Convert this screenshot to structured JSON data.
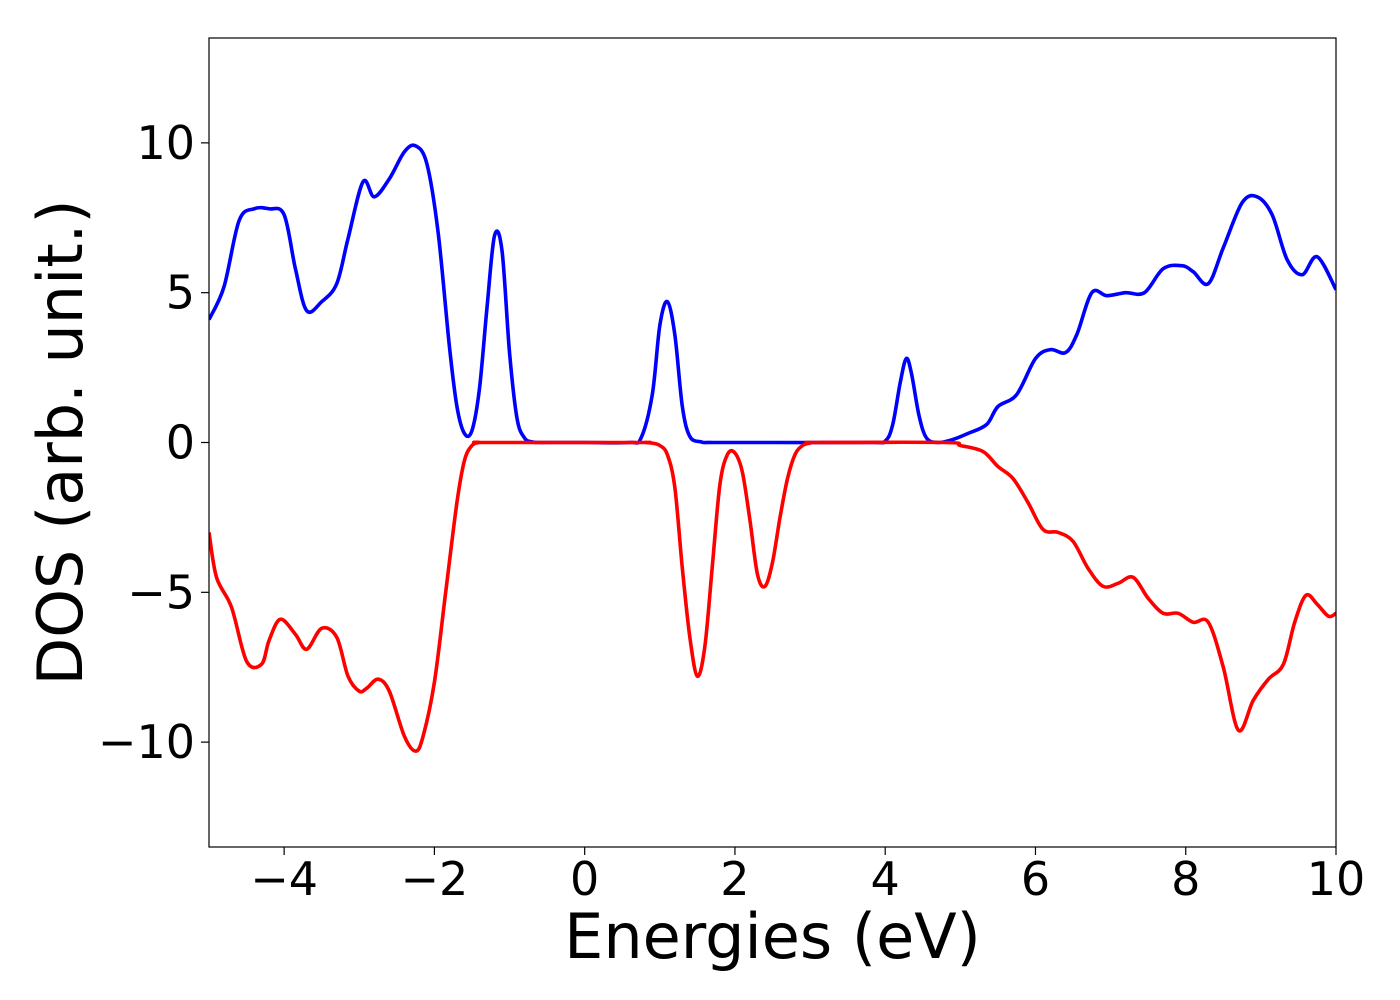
{
  "chart_data": {
    "type": "line",
    "title": "",
    "xlabel": "Energies (eV)",
    "ylabel": "DOS (arb. unit.)",
    "xlim": [
      -5,
      10
    ],
    "ylim": [
      -13.5,
      13.5
    ],
    "grid": false,
    "legend": "none",
    "x_ticks": [
      -4,
      -2,
      0,
      2,
      4,
      6,
      8,
      10
    ],
    "x_tick_labels": [
      "−4",
      "−2",
      "0",
      "2",
      "4",
      "6",
      "8",
      "10"
    ],
    "y_ticks": [
      -10,
      -5,
      0,
      5,
      10
    ],
    "y_tick_labels": [
      "−10",
      "−5",
      "0",
      "5",
      "10"
    ],
    "series": [
      {
        "color": "#0000ff",
        "x": [
          -5.0,
          -4.8,
          -4.6,
          -4.4,
          -4.2,
          -4.0,
          -3.85,
          -3.7,
          -3.5,
          -3.3,
          -3.15,
          -2.95,
          -2.8,
          -2.6,
          -2.4,
          -2.25,
          -2.1,
          -1.95,
          -1.8,
          -1.7,
          -1.6,
          -1.5,
          -1.4,
          -1.3,
          -1.2,
          -1.1,
          -1.0,
          -0.9,
          -0.8,
          -0.7,
          -0.6,
          -0.5,
          0.0,
          0.6,
          0.75,
          0.9,
          1.0,
          1.1,
          1.2,
          1.3,
          1.4,
          1.55,
          1.7,
          2.5,
          3.8,
          4.0,
          4.1,
          4.2,
          4.28,
          4.35,
          4.45,
          4.55,
          4.7,
          4.9,
          5.1,
          5.35,
          5.5,
          5.75,
          6.0,
          6.2,
          6.4,
          6.55,
          6.75,
          6.95,
          7.2,
          7.45,
          7.7,
          7.95,
          8.1,
          8.3,
          8.5,
          8.75,
          8.95,
          9.15,
          9.35,
          9.55,
          9.75,
          10.0
        ],
        "values": [
          4.1,
          5.2,
          7.4,
          7.8,
          7.8,
          7.6,
          5.8,
          4.4,
          4.7,
          5.3,
          6.8,
          8.7,
          8.2,
          8.8,
          9.7,
          9.9,
          9.3,
          7.0,
          3.2,
          1.2,
          0.3,
          0.4,
          1.8,
          4.5,
          6.9,
          6.4,
          3.0,
          0.8,
          0.15,
          0.02,
          0.0,
          0.0,
          0.0,
          0.0,
          0.15,
          1.6,
          3.9,
          4.7,
          3.6,
          1.2,
          0.2,
          0.02,
          0.0,
          0.0,
          0.0,
          0.05,
          0.6,
          2.0,
          2.8,
          2.3,
          0.9,
          0.15,
          0.0,
          0.1,
          0.3,
          0.6,
          1.2,
          1.6,
          2.8,
          3.1,
          3.0,
          3.6,
          5.0,
          4.9,
          5.0,
          5.0,
          5.8,
          5.9,
          5.7,
          5.3,
          6.5,
          8.0,
          8.2,
          7.6,
          6.1,
          5.6,
          6.2,
          5.1
        ]
      },
      {
        "color": "#ff0000",
        "x": [
          -5.0,
          -4.9,
          -4.7,
          -4.5,
          -4.3,
          -4.2,
          -4.05,
          -3.85,
          -3.7,
          -3.5,
          -3.3,
          -3.15,
          -3.0,
          -2.9,
          -2.75,
          -2.6,
          -2.4,
          -2.25,
          -2.15,
          -2.0,
          -1.85,
          -1.7,
          -1.6,
          -1.5,
          -1.4,
          -1.3,
          0.7,
          0.8,
          0.9,
          1.0,
          1.1,
          1.2,
          1.3,
          1.4,
          1.5,
          1.6,
          1.7,
          1.8,
          1.9,
          2.0,
          2.1,
          2.2,
          2.3,
          2.4,
          2.5,
          2.6,
          2.7,
          2.8,
          2.9,
          3.0,
          3.1,
          4.8,
          5.0,
          5.3,
          5.5,
          5.7,
          5.9,
          6.1,
          6.3,
          6.5,
          6.7,
          6.9,
          7.1,
          7.3,
          7.5,
          7.7,
          7.9,
          8.1,
          8.3,
          8.5,
          8.7,
          8.9,
          9.1,
          9.3,
          9.45,
          9.6,
          9.75,
          9.9,
          10.0
        ],
        "values": [
          -3.0,
          -4.5,
          -5.5,
          -7.3,
          -7.4,
          -6.6,
          -5.9,
          -6.4,
          -6.9,
          -6.2,
          -6.5,
          -7.8,
          -8.3,
          -8.2,
          -7.9,
          -8.3,
          -9.8,
          -10.3,
          -9.8,
          -8.0,
          -5.0,
          -2.0,
          -0.6,
          -0.1,
          0.0,
          0.0,
          0.0,
          0.0,
          -0.02,
          -0.1,
          -0.4,
          -1.5,
          -4.2,
          -6.5,
          -7.8,
          -6.8,
          -4.1,
          -1.4,
          -0.4,
          -0.35,
          -1.0,
          -2.6,
          -4.4,
          -4.8,
          -4.0,
          -2.5,
          -1.2,
          -0.4,
          -0.1,
          -0.02,
          0.0,
          0.0,
          -0.1,
          -0.3,
          -0.8,
          -1.2,
          -2.0,
          -2.9,
          -3.0,
          -3.3,
          -4.2,
          -4.8,
          -4.7,
          -4.5,
          -5.2,
          -5.7,
          -5.7,
          -6.0,
          -6.0,
          -7.5,
          -9.6,
          -8.6,
          -7.9,
          -7.4,
          -6.0,
          -5.1,
          -5.4,
          -5.8,
          -5.7
        ]
      }
    ]
  }
}
